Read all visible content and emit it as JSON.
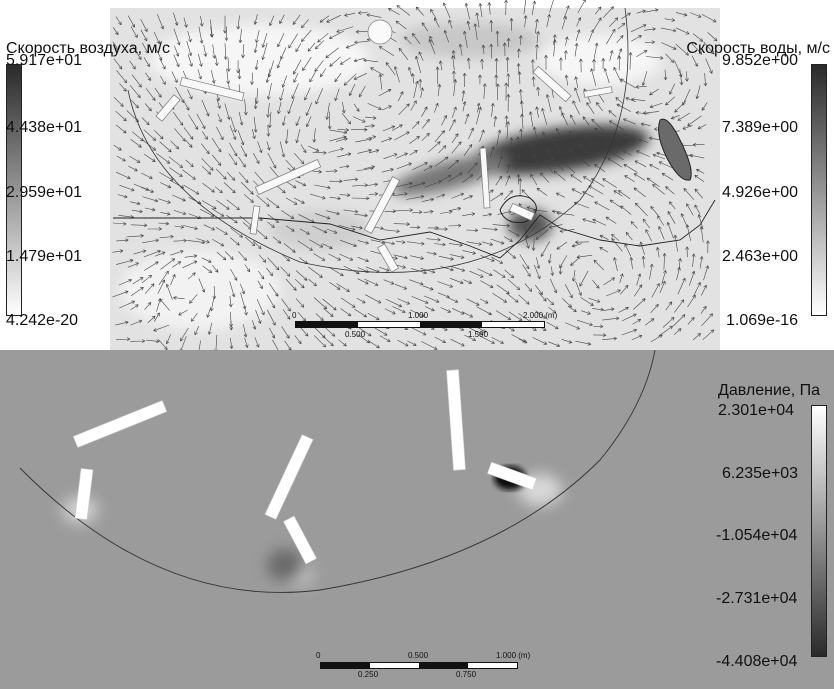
{
  "top": {
    "air_legend": {
      "title": "Скорость воздуха, м/с",
      "ticks": [
        "5.917e+01",
        "4.438e+01",
        "2.959e+01",
        "1.479e+01",
        "4.242e-20"
      ]
    },
    "water_legend": {
      "title": "Скорость воды, м/с",
      "ticks": [
        "9.852e+00",
        "7.389e+00",
        "4.926e+00",
        "2.463e+00",
        "1.069e-16"
      ]
    },
    "scale_bar": {
      "top_labels": [
        "0",
        "1.000",
        "2.000 (m)"
      ],
      "bottom_labels": [
        "0.500",
        "1.500"
      ]
    }
  },
  "bottom": {
    "pressure_legend": {
      "title": "Давление, Па",
      "ticks": [
        "2.301e+04",
        "6.235e+03",
        "-1.054e+04",
        "-2.731e+04",
        "-4.408e+04"
      ]
    },
    "scale_bar": {
      "top_labels": [
        "0",
        "0.500",
        "1.000 (m)"
      ],
      "bottom_labels": [
        "0.250",
        "0.750"
      ]
    }
  },
  "colors": {
    "pressure_background": "#9b9b9b",
    "legend_dark": "#2a2a2a",
    "legend_light": "#ffffff"
  }
}
